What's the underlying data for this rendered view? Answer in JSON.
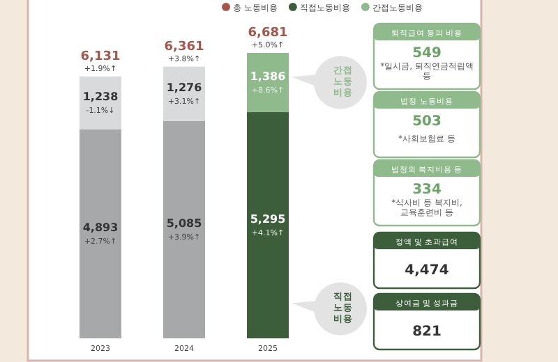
{
  "chart_data": {
    "type": "bar",
    "stacked": true,
    "categories": [
      "2023",
      "2024",
      "2025"
    ],
    "series": [
      {
        "name": "직접노동비용",
        "color": "#3c5e3b",
        "colors": [
          "#a7a8aa",
          "#a7a8aa",
          "#3c5e3b"
        ],
        "values": [
          4893,
          5085,
          5295
        ],
        "value_labels": [
          "4,893\n+2.7%↑",
          "5,085\n+3.9%↑",
          "5,295\n+4.1%↑"
        ]
      },
      {
        "name": "간접노동비용",
        "color": "#8fba8b",
        "colors": [
          "#d9dadc",
          "#d9dadc",
          "#8fba8b"
        ],
        "values": [
          1238,
          1276,
          1386
        ],
        "value_labels": [
          "1,238\n-1.1%↓",
          "1,276\n+3.1%↑",
          "1,386\n+8.6%↑"
        ]
      },
      {
        "name": "총 노동비용",
        "color": "#a5574a",
        "values": [
          null,
          null,
          null
        ]
      }
    ],
    "totals": [
      "6,131\n+1.9%↑",
      "6,361\n+3.8%↑",
      "6,681\n+5.0%↑"
    ],
    "legend": "top",
    "annotations": [
      "간접\n노동\n비용",
      "직접\n노동\n비용",
      "퇴직급여 등의 비용\n549\n*일시금, 퇴직연금적립액 등",
      "법정 노동비용\n503\n*사회보험료 등",
      "법정외 복지비용 등\n334\n*식사비 등 복지비, 교육훈련비 등",
      "정액 및 초과급여\n4,474",
      "상여금 및 성과금\n821"
    ]
  }
}
